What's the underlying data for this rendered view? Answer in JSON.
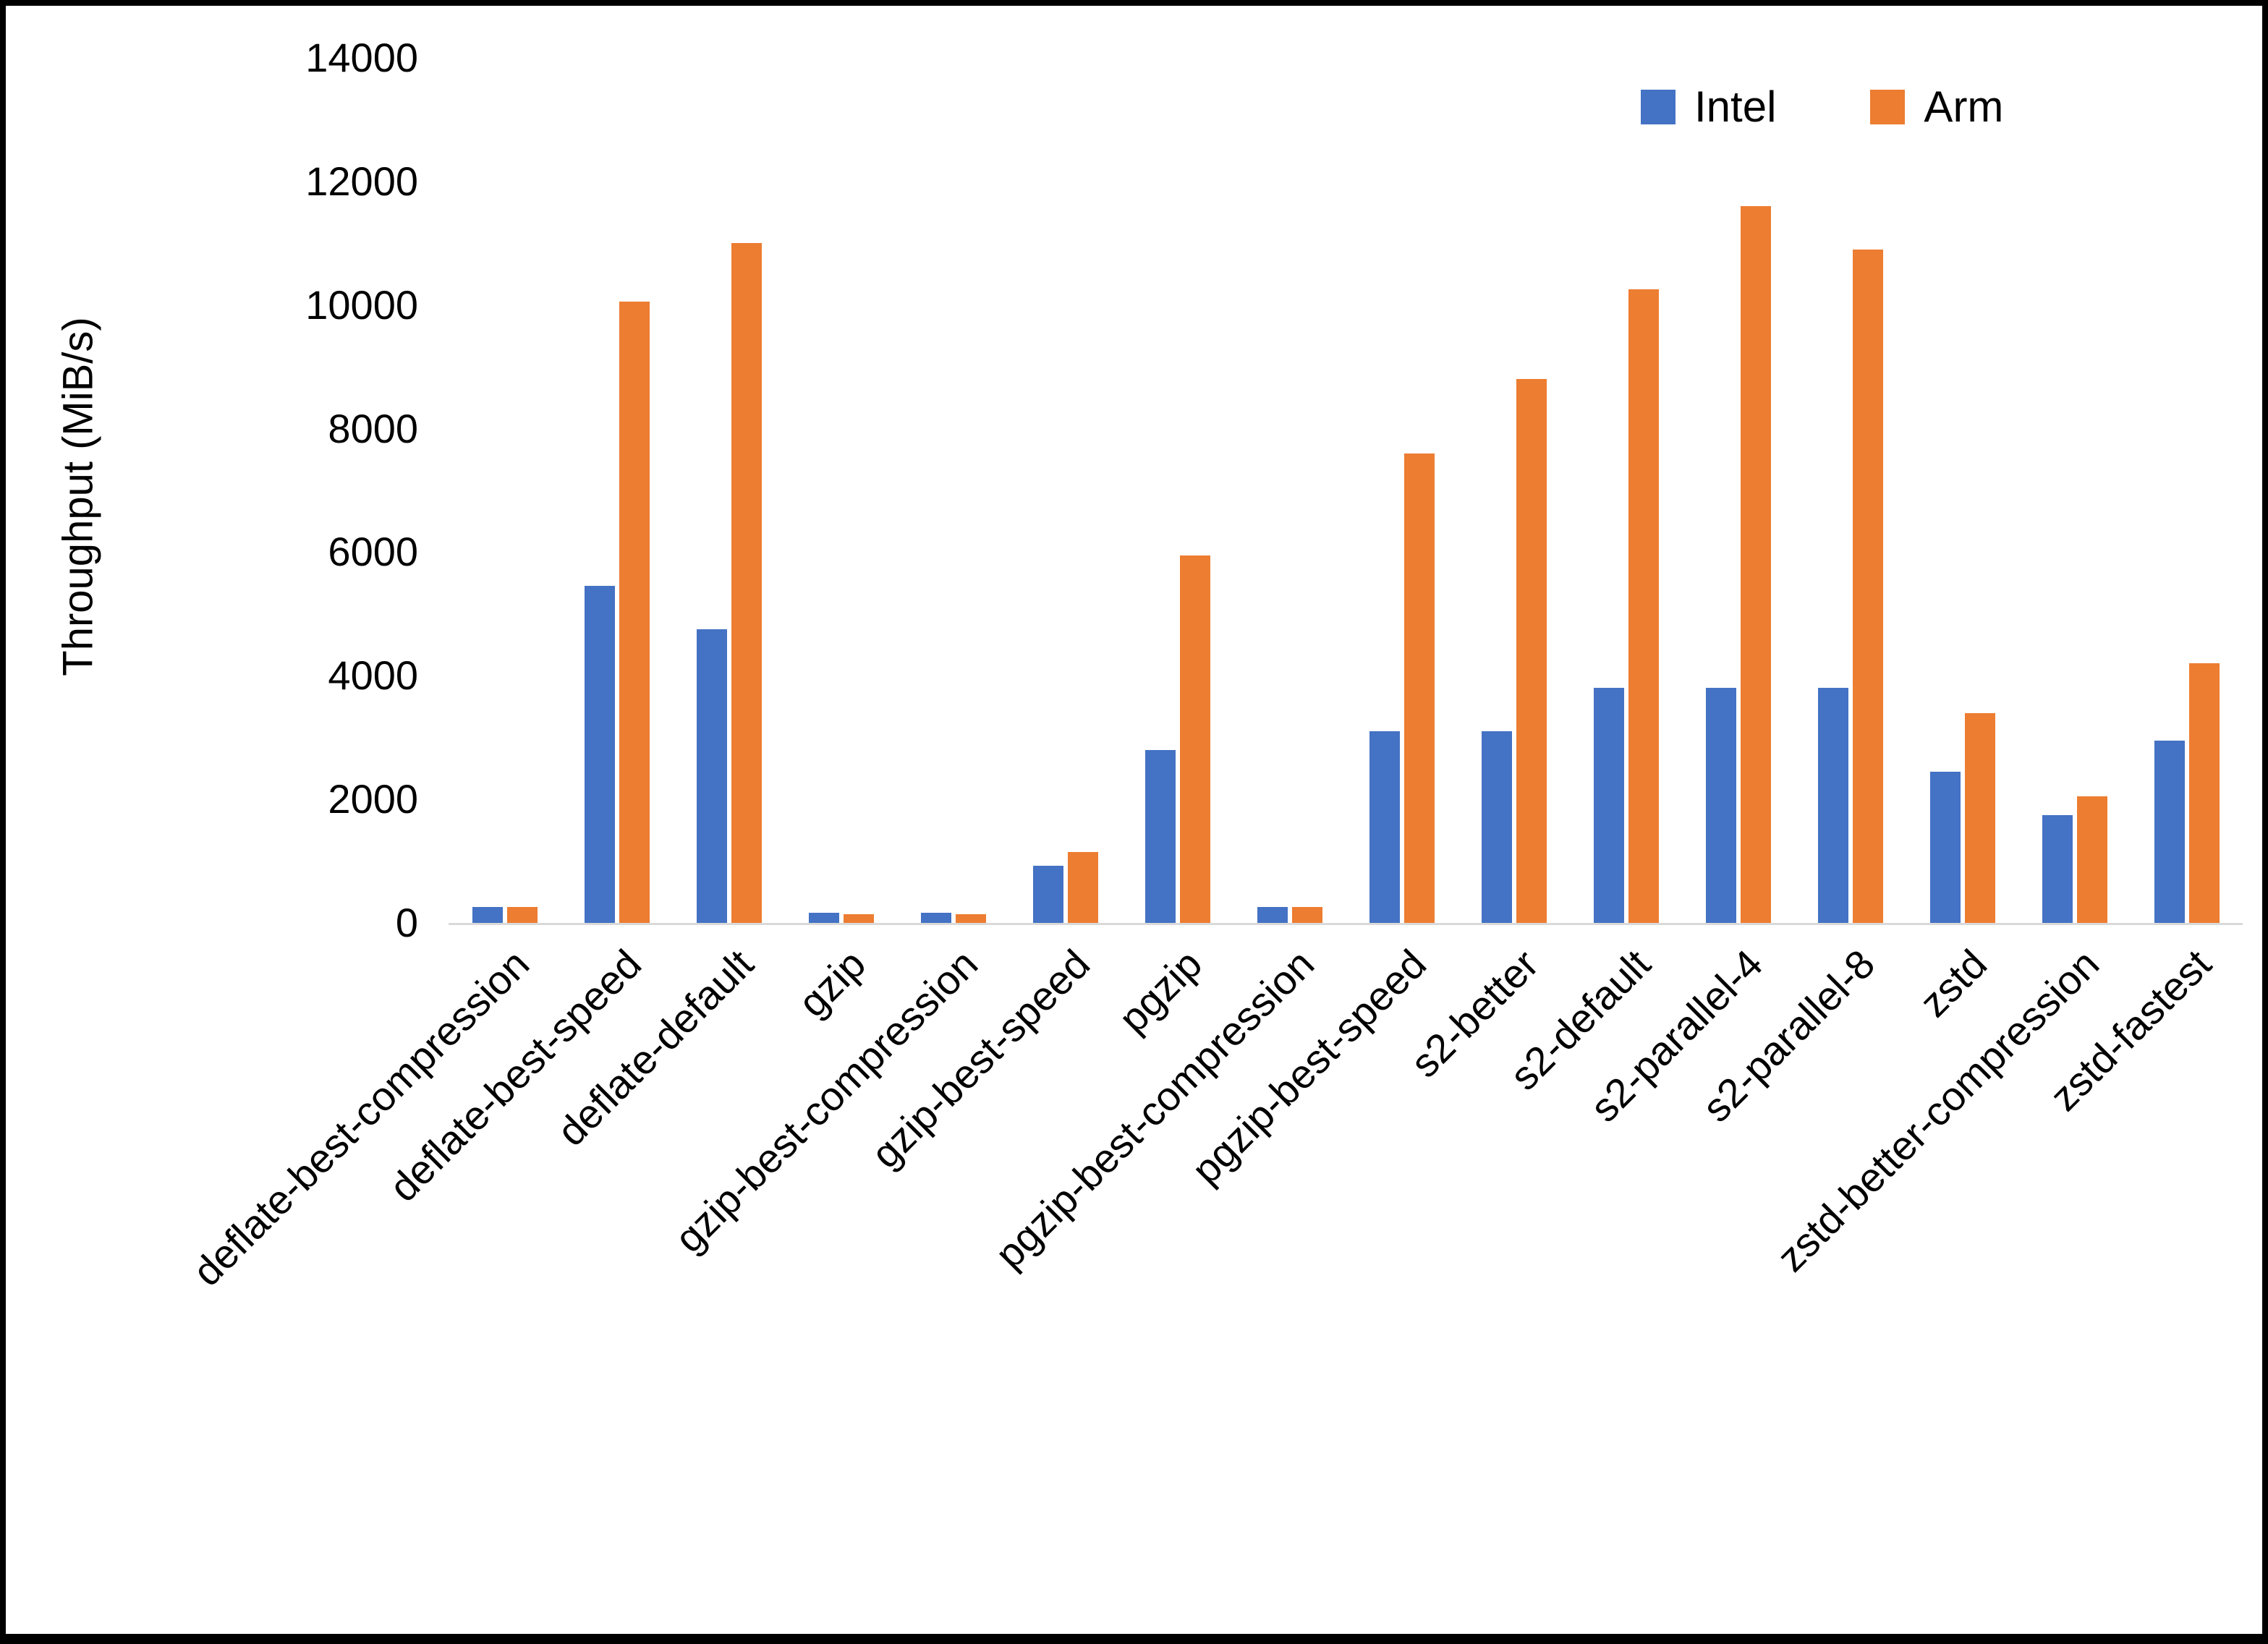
{
  "chart_data": {
    "type": "bar",
    "title": "",
    "xlabel": "",
    "ylabel": "Throughput (MiB/s)",
    "ylim": [
      0,
      14000
    ],
    "ytick_step": 2000,
    "grid": false,
    "legend_position": "top-right",
    "background_color": "#ffffff",
    "frame_border_color": "#000000",
    "axis_line_color": "#d9d9d9",
    "categories": [
      "deflate-best-compression",
      "deflate-best-speed",
      "deflate-default",
      "gzip",
      "gzip-best-compression",
      "gzip-best-speed",
      "pgzip",
      "pgzip-best-compression",
      "pgzip-best-speed",
      "s2-better",
      "s2-default",
      "s2-parallel-4",
      "s2-parallel-8",
      "zstd",
      "zstd-better-compression",
      "zstd-fastest"
    ],
    "series": [
      {
        "name": "Intel",
        "color": "#4472C4",
        "values": [
          260,
          5450,
          4750,
          160,
          160,
          920,
          2800,
          260,
          3100,
          3100,
          3800,
          3800,
          3800,
          2450,
          1750,
          2950
        ]
      },
      {
        "name": "Arm",
        "color": "#ED7D31",
        "values": [
          260,
          10050,
          11000,
          140,
          140,
          1150,
          5950,
          260,
          7600,
          8800,
          10250,
          11600,
          10900,
          3400,
          2050,
          4200
        ]
      }
    ]
  }
}
